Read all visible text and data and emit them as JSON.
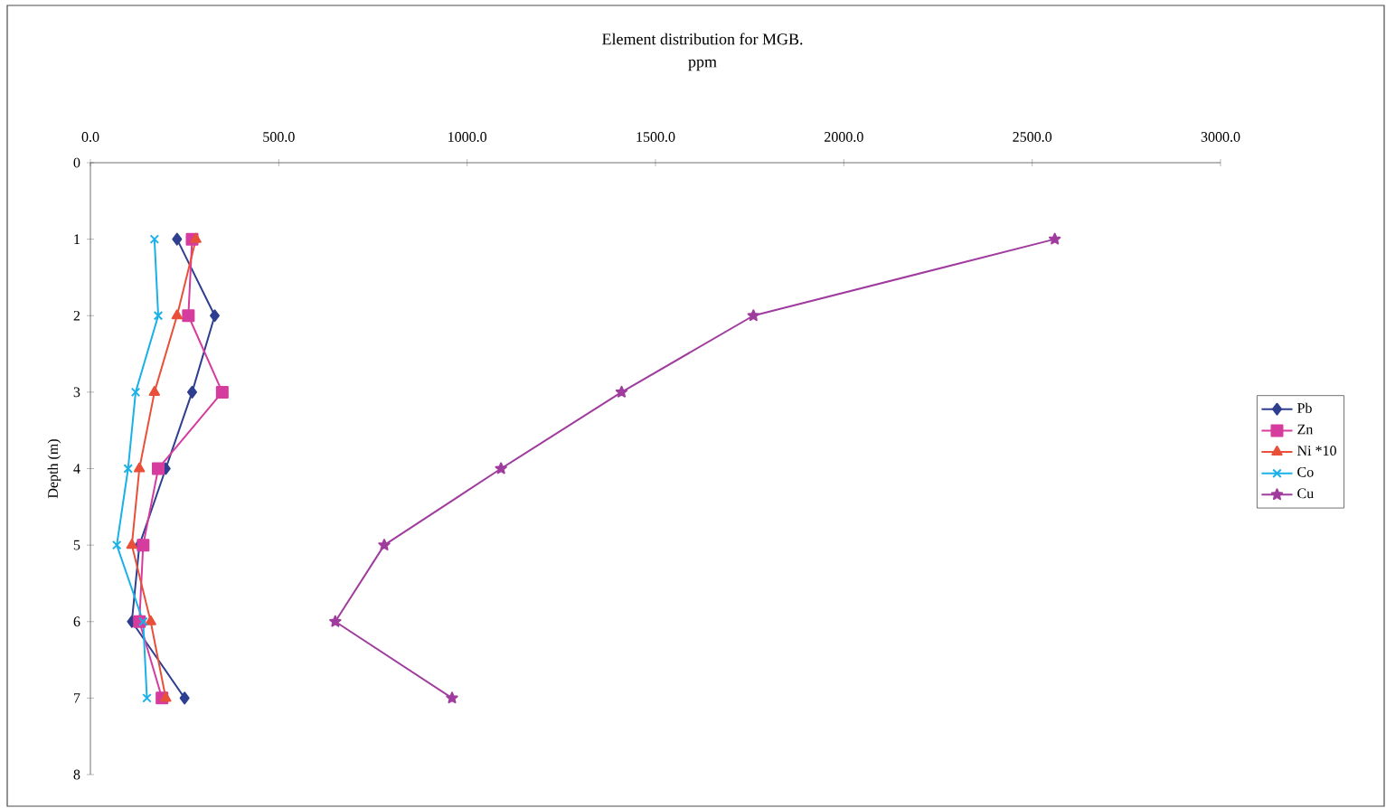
{
  "chart_data": {
    "type": "line",
    "title": "Element distribution for MGB.",
    "subtitle": "ppm",
    "ylabel": "Depth (m)",
    "xlim": [
      0,
      3000
    ],
    "xticks": [
      {
        "value": 0,
        "label": "0.0"
      },
      {
        "value": 500,
        "label": "500.0"
      },
      {
        "value": 1000,
        "label": "1000.0"
      },
      {
        "value": 1500,
        "label": "1500.0"
      },
      {
        "value": 2000,
        "label": "2000.0"
      },
      {
        "value": 2500,
        "label": "2500.0"
      },
      {
        "value": 3000,
        "label": "3000.0"
      }
    ],
    "ylim": [
      8,
      0
    ],
    "yticks": [
      0,
      1,
      2,
      3,
      4,
      5,
      6,
      7,
      8
    ],
    "grid": false,
    "legend": "right",
    "line_style": "solid",
    "series": [
      {
        "name": "Pb",
        "color": "#2e3f8f",
        "marker": "diamond",
        "x": [
          230,
          330,
          270,
          200,
          130,
          110,
          250
        ],
        "values": [
          1,
          2,
          3,
          4,
          5,
          6,
          7
        ]
      },
      {
        "name": "Zn",
        "color": "#d63c9e",
        "marker": "square",
        "x": [
          270,
          260,
          350,
          180,
          140,
          130,
          190
        ],
        "values": [
          1,
          2,
          3,
          4,
          5,
          6,
          7
        ]
      },
      {
        "name": "Ni *10",
        "color": "#e8503a",
        "marker": "triangle",
        "x": [
          280,
          230,
          170,
          130,
          110,
          160,
          200
        ],
        "values": [
          1,
          2,
          3,
          4,
          5,
          6,
          7
        ]
      },
      {
        "name": "Co",
        "color": "#1ab0e8",
        "marker": "cross",
        "x": [
          170,
          180,
          120,
          100,
          70,
          140,
          150
        ],
        "values": [
          1,
          2,
          3,
          4,
          5,
          6,
          7
        ]
      },
      {
        "name": "Cu",
        "color": "#a03c9e",
        "marker": "star",
        "x": [
          2560,
          1760,
          1410,
          1090,
          780,
          650,
          960
        ],
        "values": [
          1,
          2,
          3,
          4,
          5,
          6,
          7
        ]
      }
    ]
  }
}
